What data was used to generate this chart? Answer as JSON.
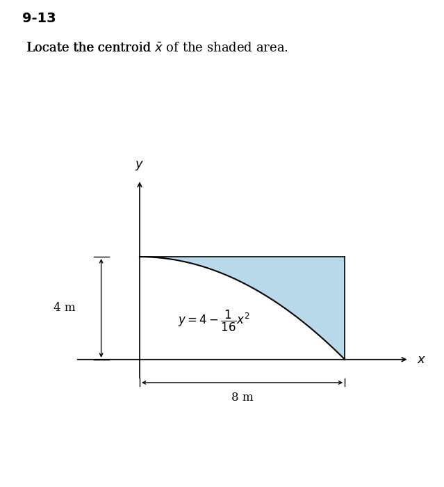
{
  "title": "9-13",
  "subtitle_part1": "Locate the centroid ",
  "subtitle_xbar": "$\\bar{x}$",
  "subtitle_part2": " of the shaded area.",
  "background_color": "#ffffff",
  "shaded_color": "#b8d9ea",
  "x_max": 8,
  "y_max": 4,
  "curve_label": "$y = 4 - \\dfrac{1}{16}x^2$",
  "x_label": "$x$",
  "y_label": "$y$",
  "dim_label_4m": "4 m",
  "dim_label_8m": "8 m",
  "title_fontsize": 14,
  "subtitle_fontsize": 13,
  "label_fontsize": 13,
  "curve_label_fontsize": 12,
  "dim_fontsize": 12
}
